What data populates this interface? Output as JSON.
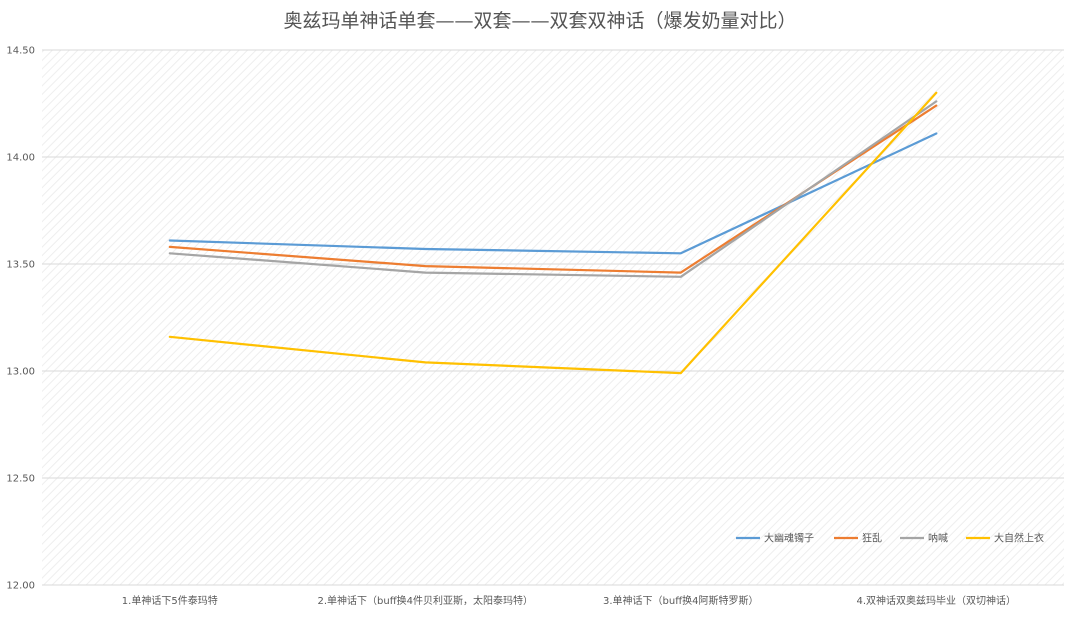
{
  "chart_data": {
    "type": "line",
    "title": "奥兹玛单神话单套——双套——双套双神话（爆发奶量对比）",
    "xlabel": "",
    "ylabel": "",
    "categories": [
      "1.单神话下5件泰玛特",
      "2.单神话下（buff换4件贝利亚斯，太阳泰玛特）",
      "3.单神话下（buff换4阿斯特罗斯）",
      "4.双神话双奥兹玛毕业（双切神话）"
    ],
    "yticks": [
      "12.00",
      "12.50",
      "13.00",
      "13.50",
      "14.00",
      "14.50"
    ],
    "ylim": [
      12.0,
      14.5
    ],
    "grid": true,
    "legend_position": "bottom-right",
    "series": [
      {
        "name": "大幽魂镯子",
        "color": "#5B9BD5",
        "values": [
          13.61,
          13.57,
          13.55,
          14.11
        ]
      },
      {
        "name": "狂乱",
        "color": "#ED7D31",
        "values": [
          13.58,
          13.49,
          13.46,
          14.24
        ]
      },
      {
        "name": "呐喊",
        "color": "#A5A5A5",
        "values": [
          13.55,
          13.46,
          13.44,
          14.26
        ]
      },
      {
        "name": "大自然上衣",
        "color": "#FFC000",
        "values": [
          13.16,
          13.04,
          12.99,
          14.3
        ]
      }
    ]
  }
}
